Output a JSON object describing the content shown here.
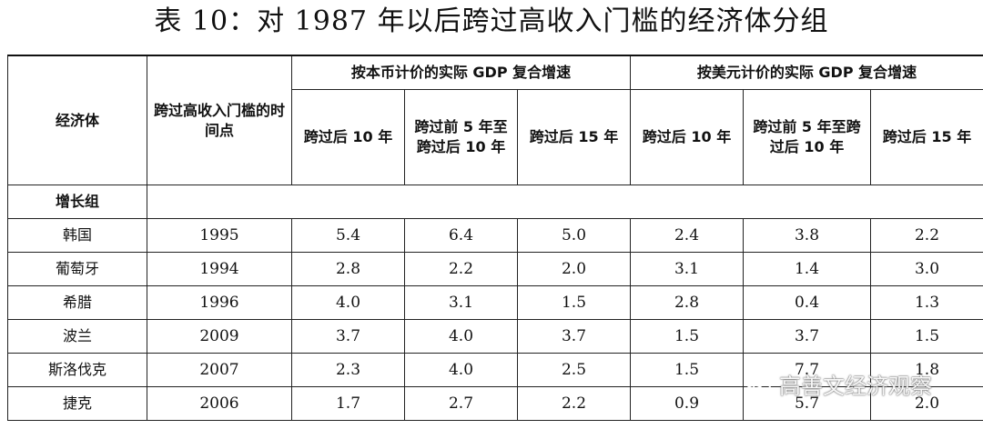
{
  "title": "表 10：对 1987 年以后跨过高收入门槛的经济体分组",
  "table": {
    "col_economy": "经济体",
    "col_cross_time": "跨过高收入门槛的时间点",
    "group_local": "按本币计价的实际 GDP 复合增速",
    "group_usd": "按美元计价的实际 GDP 复合增速",
    "sub_after10": "跨过后 10 年",
    "sub_before5_after10": "跨过前 5 年至跨过后 10 年",
    "sub_after15": "跨过后 15 年",
    "group_growth": "增长组",
    "rows": [
      {
        "name": "韩国",
        "year": "1995",
        "v": [
          "5.4",
          "6.4",
          "5.0",
          "2.4",
          "3.8",
          "2.2"
        ]
      },
      {
        "name": "葡萄牙",
        "year": "1994",
        "v": [
          "2.8",
          "2.2",
          "2.0",
          "3.1",
          "1.4",
          "3.0"
        ]
      },
      {
        "name": "希腊",
        "year": "1996",
        "v": [
          "4.0",
          "3.1",
          "1.5",
          "2.8",
          "0.4",
          "1.3"
        ]
      },
      {
        "name": "波兰",
        "year": "2009",
        "v": [
          "3.7",
          "4.0",
          "3.7",
          "1.5",
          "3.7",
          "1.5"
        ]
      },
      {
        "name": "斯洛伐克",
        "year": "2007",
        "v": [
          "2.3",
          "4.0",
          "2.5",
          "1.5",
          "7.7",
          "1.8"
        ]
      },
      {
        "name": "捷克",
        "year": "2006",
        "v": [
          "1.7",
          "2.7",
          "2.2",
          "0.9",
          "5.7",
          "2.0"
        ]
      }
    ]
  },
  "watermark": {
    "text": "高善文经济观察",
    "icon": "wechat-icon"
  }
}
